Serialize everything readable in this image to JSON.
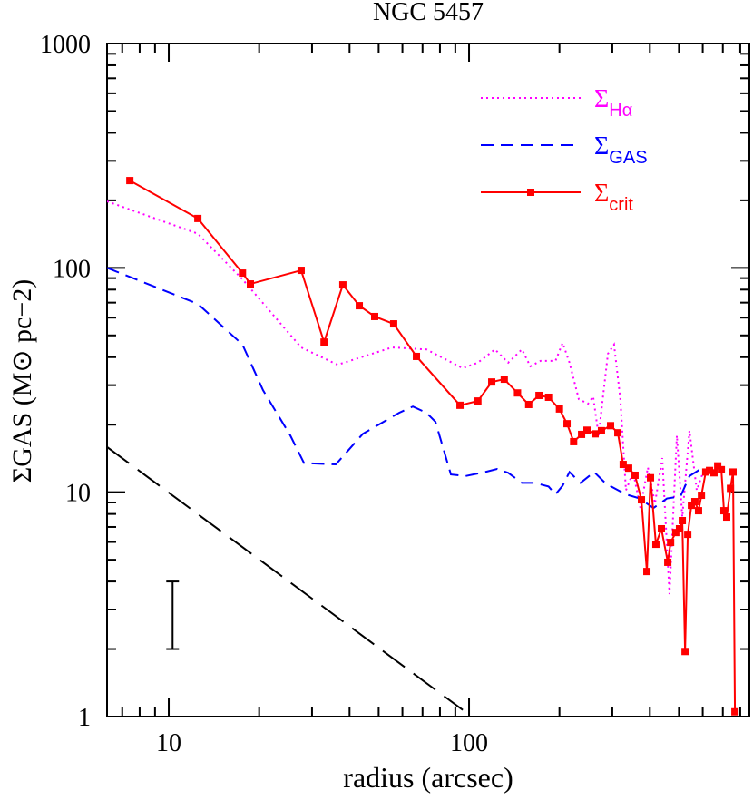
{
  "chart_data": {
    "type": "line",
    "title": "NGC 5457",
    "xlabel": "radius (arcsec)",
    "ylabel": "ΣGAS (M⊙ pc−2)",
    "xscale": "log",
    "yscale": "log",
    "xlim": [
      6.23,
      858
    ],
    "ylim": [
      1,
      1000
    ],
    "xticks": [
      10,
      100
    ],
    "yticks": [
      1,
      10,
      100,
      1000
    ],
    "minor_ticks": true,
    "legend": "upper right",
    "series": [
      {
        "name": "ΣHα",
        "color": "#ff00ff",
        "dash": "dotted",
        "x": [
          6.23,
          12.5,
          17.6,
          27.6,
          36.5,
          55.4,
          72.1,
          95.3,
          107,
          122,
          135,
          150,
          160,
          173,
          194,
          205,
          216,
          232,
          249,
          259,
          270,
          290,
          304,
          319,
          333,
          352,
          372,
          394,
          416,
          440,
          465,
          492,
          513,
          542,
          573,
          602
        ],
        "values": [
          198,
          142,
          88.9,
          44.2,
          37.0,
          44.2,
          43.3,
          35.7,
          37.8,
          43.3,
          37.8,
          43.3,
          36.4,
          38.5,
          38.5,
          46.3,
          37.8,
          26.0,
          24.8,
          26.7,
          17.9,
          41.4,
          45.5,
          26.0,
          10.2,
          12.3,
          8.5,
          12.9,
          8.9,
          14.2,
          3.51,
          17.9,
          7.75,
          18.8,
          10.2,
          12.3
        ]
      },
      {
        "name": "ΣGAS",
        "color": "#0000ff",
        "dash": "dashed",
        "x": [
          6.23,
          12.5,
          17.6,
          20.6,
          25.4,
          28.2,
          36.0,
          44.3,
          58.5,
          65.0,
          72.1,
          77.3,
          87.0,
          97.2,
          113,
          124,
          135,
          150,
          166,
          184,
          194,
          205,
          216,
          235,
          261,
          286,
          333,
          370,
          411,
          456,
          506,
          542,
          602
        ],
        "values": [
          100,
          69.1,
          45.5,
          28.5,
          17.9,
          13.5,
          13.3,
          18.2,
          22.6,
          24.1,
          22.6,
          20.6,
          12.0,
          11.8,
          12.3,
          12.7,
          12.2,
          11.0,
          11.0,
          10.6,
          9.78,
          10.7,
          12.3,
          11.0,
          12.3,
          10.9,
          9.78,
          9.38,
          8.5,
          9.38,
          9.58,
          11.8,
          12.9
        ]
      },
      {
        "name": "Σcrit",
        "color": "#ff0000",
        "dash": "solid",
        "marker": "square",
        "x": [
          7.42,
          12.5,
          17.6,
          18.7,
          27.6,
          32.9,
          38.0,
          43.1,
          48.5,
          56.1,
          66.8,
          93.3,
          107,
          119,
          131,
          145,
          158,
          171,
          184,
          200,
          212,
          223,
          237,
          247,
          263,
          276,
          296,
          313,
          326,
          340,
          357,
          375,
          391,
          402,
          419,
          437,
          459,
          469,
          488,
          502,
          513,
          524,
          535,
          550,
          565,
          581,
          594,
          614,
          632,
          654,
          673,
          692,
          706,
          721,
          742,
          757,
          768
        ],
        "values": [
          245,
          166,
          94.8,
          84.8,
          97.5,
          46.7,
          84.0,
          67.8,
          60.7,
          56.3,
          40.3,
          24.4,
          25.5,
          31.0,
          31.9,
          27.7,
          24.6,
          27.0,
          26.5,
          23.5,
          20.2,
          16.8,
          18.1,
          18.9,
          18.2,
          18.8,
          19.8,
          18.4,
          13.3,
          12.8,
          11.9,
          9.25,
          4.43,
          11.6,
          5.86,
          6.87,
          4.87,
          5.97,
          6.61,
          6.87,
          7.47,
          1.95,
          6.49,
          8.74,
          9.08,
          8.27,
          9.69,
          12.3,
          12.5,
          12.2,
          13.1,
          12.6,
          8.27,
          7.75,
          10.4,
          12.3,
          1.05
        ]
      },
      {
        "color": "#000000",
        "dash": "longdash",
        "x": [
          6.23,
          95.3
        ],
        "values": [
          15.9,
          1.07
        ]
      }
    ],
    "error_bar": {
      "x": 10.3,
      "low": 2,
      "high": 4,
      "color": "#000000"
    }
  }
}
